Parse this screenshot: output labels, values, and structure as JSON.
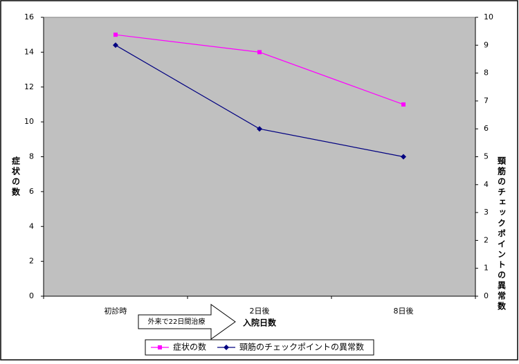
{
  "chart_data": {
    "type": "line",
    "categories": [
      "初診時",
      "2日後",
      "8日後"
    ],
    "x_label": "入院日数",
    "y_label": "症状の数",
    "y2_label": "頸筋のチェックポイントの異常数",
    "annotation": "外来で22日間治療",
    "series": [
      {
        "name": "症状の数",
        "color": "#ff00ff",
        "marker": "square",
        "values": [
          15,
          14,
          11
        ]
      },
      {
        "name": "頸筋のチェックポイントの異常数",
        "color": "#000080",
        "marker": "diamond",
        "axis": "y2",
        "values": [
          9,
          6,
          5
        ]
      }
    ],
    "ylim": [
      0,
      16
    ],
    "yticks": [
      0,
      2,
      4,
      6,
      8,
      10,
      12,
      14,
      16
    ],
    "y2lim": [
      0,
      10
    ],
    "y2ticks": [
      0,
      1,
      2,
      3,
      4,
      5,
      6,
      7,
      8,
      9,
      10
    ],
    "plot_background": "#c0c0c0"
  }
}
